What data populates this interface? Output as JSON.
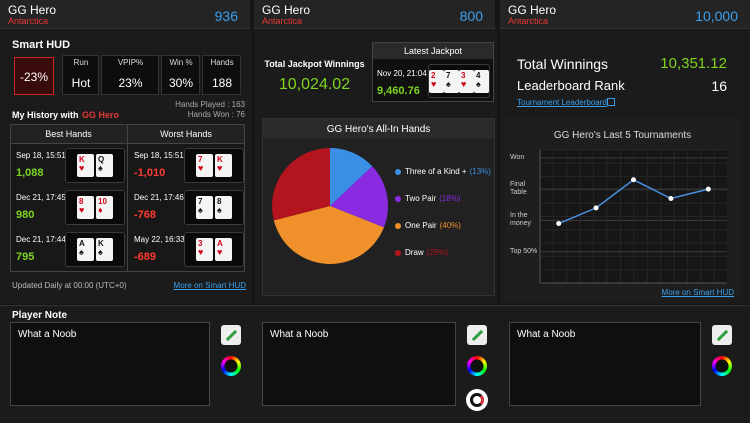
{
  "players": [
    {
      "name": "GG Hero",
      "region": "Antarctica",
      "score": "936"
    },
    {
      "name": "GG Hero",
      "region": "Antarctica",
      "score": "800"
    },
    {
      "name": "GG Hero",
      "region": "Antarctica",
      "score": "10,000"
    }
  ],
  "smart_hud": {
    "title": "Smart HUD",
    "badge": "-23%",
    "stats": [
      {
        "label": "Run",
        "value": "Hot"
      },
      {
        "label": "VPIP%",
        "value": "23%"
      },
      {
        "label": "Win %",
        "value": "30%"
      },
      {
        "label": "Hands",
        "value": "188"
      }
    ],
    "hands_played": "Hands Played : 163",
    "hands_won": "Hands Won : 76"
  },
  "history": {
    "title": "My History with",
    "player": "GG Hero",
    "headers": [
      "Best Hands",
      "Worst Hands"
    ],
    "rows": [
      {
        "best": {
          "date": "Sep 18, 15:51",
          "amount": "1,088",
          "cards": [
            {
              "rank": "K",
              "suit": "♥",
              "color": "#d0021b"
            },
            {
              "rank": "Q",
              "suit": "♠",
              "color": "#111111"
            }
          ]
        },
        "worst": {
          "date": "Sep 18, 15:51",
          "amount": "-1,010",
          "cards": [
            {
              "rank": "7",
              "suit": "♥",
              "color": "#d0021b"
            },
            {
              "rank": "K",
              "suit": "♥",
              "color": "#d0021b"
            }
          ]
        }
      },
      {
        "best": {
          "date": "Dec 21, 17:45",
          "amount": "980",
          "cards": [
            {
              "rank": "8",
              "suit": "♥",
              "color": "#d0021b"
            },
            {
              "rank": "10",
              "suit": "♦",
              "color": "#d0021b"
            }
          ]
        },
        "worst": {
          "date": "Dec 21, 17:46",
          "amount": "-768",
          "cards": [
            {
              "rank": "7",
              "suit": "♠",
              "color": "#111111"
            },
            {
              "rank": "8",
              "suit": "♠",
              "color": "#111111"
            }
          ]
        }
      },
      {
        "best": {
          "date": "Dec 21, 17:44",
          "amount": "795",
          "cards": [
            {
              "rank": "A",
              "suit": "♠",
              "color": "#111111"
            },
            {
              "rank": "K",
              "suit": "♠",
              "color": "#111111"
            }
          ]
        },
        "worst": {
          "date": "May 22, 16:33",
          "amount": "-689",
          "cards": [
            {
              "rank": "3",
              "suit": "♥",
              "color": "#d0021b"
            },
            {
              "rank": "A",
              "suit": "♥",
              "color": "#d0021b"
            }
          ]
        }
      }
    ],
    "footer": "Updated Daily at 00:00 (UTC+0)",
    "link": "More on Smart HUD"
  },
  "jackpot": {
    "total_label": "Total Jackpot Winnings",
    "total": "10,024.02",
    "latest_title": "Latest Jackpot",
    "latest_date": "Nov 20, 21:04",
    "latest_amount": "9,460.76",
    "cards": [
      {
        "rank": "2",
        "suit": "♥",
        "color": "#d0021b"
      },
      {
        "rank": "7",
        "suit": "♠",
        "color": "#111111"
      },
      {
        "rank": "3",
        "suit": "♥",
        "color": "#d0021b"
      },
      {
        "rank": "4",
        "suit": "♠",
        "color": "#111111"
      }
    ]
  },
  "winnings": {
    "total_label": "Total Winnings",
    "total": "10,351.12",
    "rank_label": "Leaderboard Rank",
    "rank": "16",
    "leaderboard_link": "Tournament Leaderboard",
    "chart_link": "More on Smart HUD"
  },
  "chart_data": [
    {
      "type": "pie",
      "title": "GG Hero's All-In Hands",
      "categories": [
        "Three of a Kind +",
        "Two Pair",
        "One Pair",
        "Draw"
      ],
      "values": [
        13,
        18,
        40,
        29
      ],
      "value_labels": [
        "(13%)",
        "(18%)",
        "(40%)",
        "(29%)"
      ],
      "colors": [
        "#3b8ee6",
        "#8a2be2",
        "#f0902a",
        "#b3141d"
      ]
    },
    {
      "type": "line",
      "title": "GG Hero's Last 5 Tournaments",
      "categories": [
        null,
        null,
        null,
        null,
        null
      ],
      "values": [
        1.9,
        2.4,
        3.3,
        2.7,
        3.0
      ],
      "color": "#4a90e2",
      "ylim": [
        0,
        4.25
      ],
      "yticks": [
        {
          "value": 1,
          "label": "Top 50%"
        },
        {
          "value": 2,
          "label": "In the money"
        },
        {
          "value": 3,
          "label": "Final Table"
        },
        {
          "value": 4,
          "label": "Won"
        }
      ],
      "grid": true
    }
  ],
  "notes": {
    "title": "Player Note",
    "items": [
      "What a Noob",
      "What a Noob",
      "What a Noob"
    ]
  }
}
